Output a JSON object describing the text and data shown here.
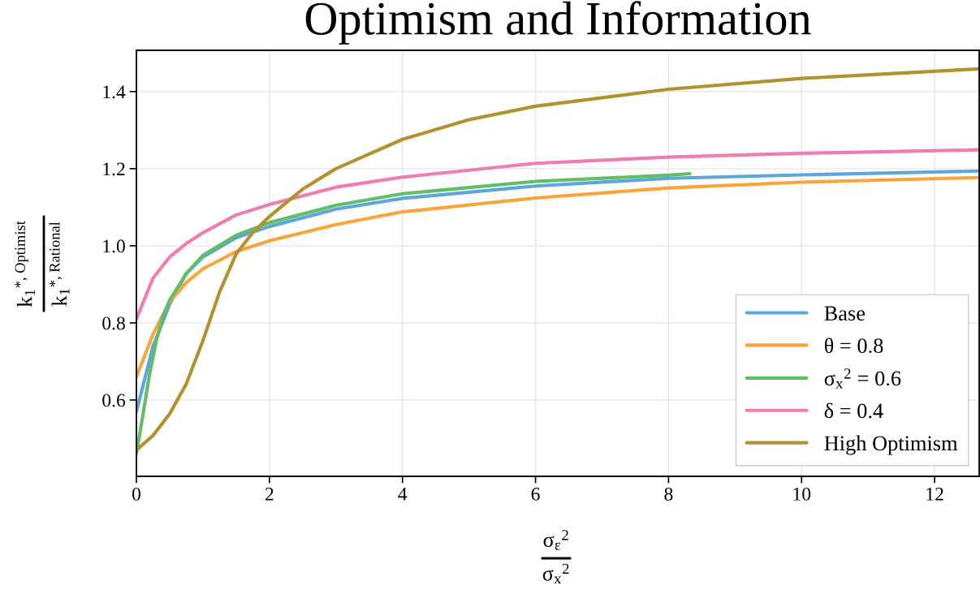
{
  "chart_data": {
    "type": "line",
    "title": "Optimism and Information",
    "xlabel": "σ$_{ε}$$^{2}$\nσ$_{x}$$^{2}$",
    "ylabel": "k$_{1}$$^{*, Optimist}$\nk$_{1}$$^{*, Rational}$",
    "xlim": [
      0,
      12.67
    ],
    "ylim": [
      0.402,
      1.507
    ],
    "xticks": [
      0,
      2,
      4,
      6,
      8,
      10,
      12
    ],
    "yticks": [
      0.6,
      0.8,
      {
        "value": 1.0,
        "label": "1.0"
      },
      1.2,
      1.4
    ],
    "grid": true,
    "legend": "lower right",
    "marker": "none",
    "line_style": "solid",
    "series": [
      {
        "name": "Base",
        "color": "#5da5da",
        "x": [
          0,
          0.25,
          0.5,
          0.75,
          1,
          1.5,
          2,
          3,
          4,
          6,
          8,
          10,
          12.67
        ],
        "values": [
          0.57,
          0.739,
          0.848,
          0.928,
          0.971,
          1.021,
          1.05,
          1.095,
          1.123,
          1.155,
          1.175,
          1.184,
          1.194
        ]
      },
      {
        "name": "θ = 0.8",
        "color": "#faa43a",
        "x": [
          0,
          0.25,
          0.5,
          0.75,
          1,
          1.5,
          2,
          3,
          4,
          6,
          8,
          10,
          12.67
        ],
        "values": [
          0.66,
          0.771,
          0.855,
          0.905,
          0.94,
          0.985,
          1.013,
          1.055,
          1.088,
          1.124,
          1.15,
          1.165,
          1.177
        ]
      },
      {
        "name": "σ$_{x}$$^{2}$ = 0.6",
        "color": "#60bd68",
        "x": [
          0,
          0.1,
          0.2,
          0.3,
          0.4,
          0.5,
          0.75,
          1,
          1.5,
          2,
          3,
          4,
          6,
          8,
          8.32
        ],
        "values": [
          0.46,
          0.564,
          0.669,
          0.754,
          0.817,
          0.859,
          0.928,
          0.975,
          1.027,
          1.06,
          1.105,
          1.135,
          1.167,
          1.183,
          1.187
        ]
      },
      {
        "name": "δ = 0.4",
        "color": "#f17cb0",
        "x": [
          0,
          0.25,
          0.5,
          0.75,
          1,
          1.5,
          2,
          3,
          4,
          6,
          8,
          10,
          12.67
        ],
        "values": [
          0.81,
          0.916,
          0.971,
          1.006,
          1.034,
          1.08,
          1.107,
          1.152,
          1.178,
          1.214,
          1.23,
          1.24,
          1.249
        ]
      },
      {
        "name": "High Optimism",
        "color": "#b2912f",
        "x": [
          0,
          0.25,
          0.5,
          0.75,
          1,
          1.25,
          1.5,
          1.75,
          2,
          2.5,
          3,
          4,
          5,
          6,
          8,
          10,
          12.67
        ],
        "values": [
          0.47,
          0.508,
          0.564,
          0.642,
          0.754,
          0.88,
          0.979,
          1.034,
          1.076,
          1.147,
          1.2,
          1.276,
          1.327,
          1.362,
          1.406,
          1.434,
          1.459
        ]
      }
    ]
  }
}
